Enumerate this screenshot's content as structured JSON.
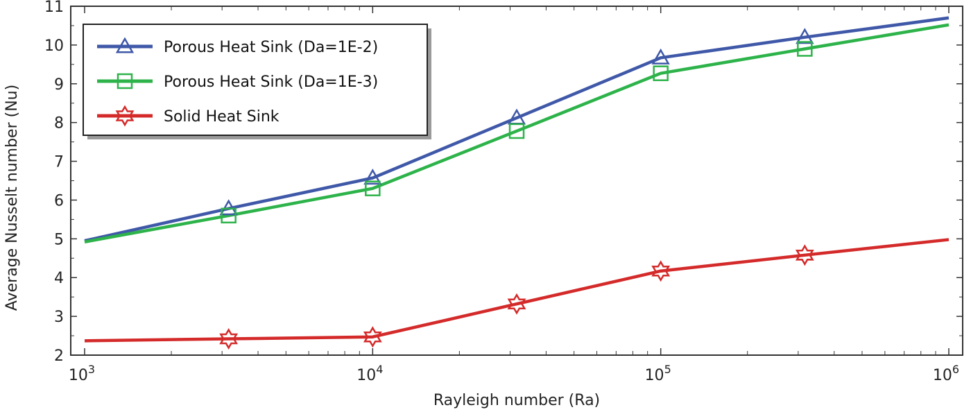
{
  "chart_data": {
    "type": "line",
    "title": "",
    "xlabel": "Rayleigh number (Ra)",
    "ylabel": "Average Nusselt number (Nu)",
    "xscale": "log",
    "xlim": [
      1000,
      1000000
    ],
    "ylim": [
      2,
      11
    ],
    "grid": false,
    "legend_position": "top-left",
    "x_ticks": [
      {
        "value": 1000,
        "base": "10",
        "exp": "3"
      },
      {
        "value": 10000,
        "base": "10",
        "exp": "4"
      },
      {
        "value": 100000,
        "base": "10",
        "exp": "5"
      },
      {
        "value": 1000000,
        "base": "10",
        "exp": "6"
      }
    ],
    "y_ticks": [
      2,
      3,
      4,
      5,
      6,
      7,
      8,
      9,
      10,
      11
    ],
    "series": [
      {
        "name": "Porous Heat Sink (Da=1E-2)",
        "color": "#3f58a8",
        "marker": "triangle",
        "x": [
          1000,
          3162,
          10000,
          31623,
          100000,
          316228,
          1000000
        ],
        "y": [
          4.95,
          5.78,
          6.57,
          8.12,
          9.67,
          10.2,
          10.7
        ],
        "marker_indices": [
          1,
          2,
          3,
          4,
          5
        ]
      },
      {
        "name": "Porous Heat Sink (Da=1E-3)",
        "color": "#2db34a",
        "marker": "square",
        "x": [
          1000,
          3162,
          10000,
          31623,
          100000,
          316228,
          1000000
        ],
        "y": [
          4.92,
          5.6,
          6.3,
          7.78,
          9.27,
          9.9,
          10.52
        ],
        "marker_indices": [
          1,
          2,
          3,
          4,
          5
        ]
      },
      {
        "name": "Solid Heat Sink",
        "color": "#d42a2a",
        "marker": "hexagram",
        "x": [
          1000,
          3162,
          10000,
          31623,
          100000,
          316228,
          1000000
        ],
        "y": [
          2.37,
          2.42,
          2.47,
          3.32,
          4.17,
          4.58,
          4.98
        ],
        "marker_indices": [
          1,
          2,
          3,
          4,
          5
        ]
      }
    ]
  }
}
